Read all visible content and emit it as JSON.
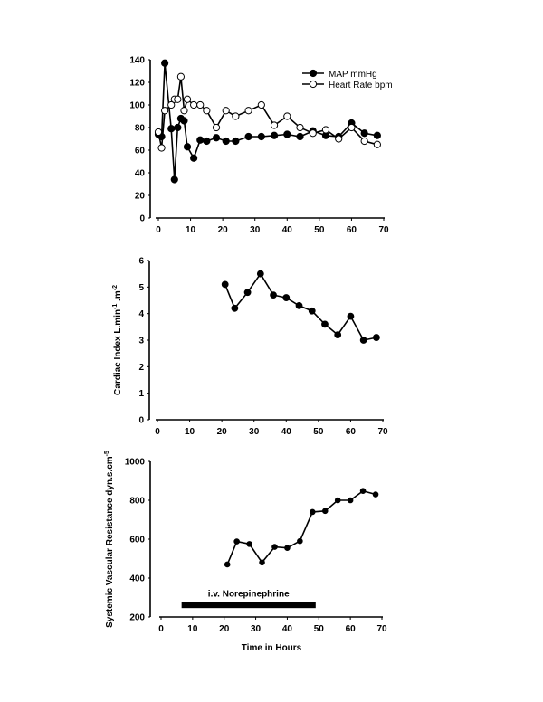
{
  "chart_data": [
    {
      "type": "line",
      "title": "",
      "xlabel": "",
      "ylabel": "",
      "xlim": [
        0,
        70
      ],
      "ylim": [
        0,
        140
      ],
      "xticks": [
        0,
        10,
        20,
        30,
        40,
        50,
        60,
        70
      ],
      "yticks": [
        0,
        20,
        40,
        60,
        80,
        100,
        120,
        140
      ],
      "grid": false,
      "legend_position": "top-right",
      "series": [
        {
          "name": "MAP mmHg",
          "marker": "filled-circle",
          "x": [
            0,
            1,
            2,
            4,
            5,
            6,
            7,
            8,
            9,
            11,
            13,
            15,
            18,
            21,
            24,
            28,
            32,
            36,
            40,
            44,
            48,
            52,
            56,
            60,
            64,
            68
          ],
          "y": [
            74,
            72,
            137,
            79,
            34,
            80,
            88,
            86,
            63,
            53,
            69,
            68,
            71,
            68,
            68,
            72,
            72,
            73,
            74,
            72,
            77,
            73,
            72,
            84,
            75,
            73
          ]
        },
        {
          "name": "Heart Rate bpm",
          "marker": "open-circle",
          "x": [
            0,
            1,
            2,
            4,
            5,
            6,
            7,
            8,
            9,
            11,
            13,
            15,
            18,
            21,
            24,
            28,
            32,
            36,
            40,
            44,
            48,
            52,
            56,
            60,
            64,
            68
          ],
          "y": [
            76,
            62,
            95,
            100,
            105,
            105,
            125,
            95,
            105,
            100,
            100,
            95,
            80,
            95,
            90,
            95,
            100,
            82,
            90,
            80,
            75,
            78,
            70,
            80,
            68,
            65
          ]
        }
      ]
    },
    {
      "type": "line",
      "title": "",
      "xlabel": "",
      "ylabel": "Cardiac Index L.min-1.m-2",
      "xlim": [
        0,
        70
      ],
      "ylim": [
        0,
        6
      ],
      "xticks": [
        0,
        10,
        20,
        30,
        40,
        50,
        60,
        70
      ],
      "yticks": [
        0,
        1,
        2,
        3,
        4,
        5,
        6
      ],
      "grid": false,
      "series": [
        {
          "name": "Cardiac Index",
          "marker": "filled-circle",
          "x": [
            21,
            24,
            28,
            32,
            36,
            40,
            44,
            48,
            52,
            56,
            60,
            64,
            68
          ],
          "y": [
            5.1,
            4.2,
            4.8,
            5.5,
            4.7,
            4.6,
            4.3,
            4.1,
            3.6,
            3.2,
            3.9,
            3.0,
            3.1
          ]
        }
      ]
    },
    {
      "type": "line",
      "title": "",
      "xlabel": "Time in Hours",
      "ylabel": "Systemic Vascular Resistance dyn.s.cm-5",
      "xlim": [
        0,
        70
      ],
      "ylim": [
        200,
        1000
      ],
      "xticks": [
        0,
        10,
        20,
        30,
        40,
        50,
        60,
        70
      ],
      "yticks": [
        200,
        400,
        600,
        800,
        1000
      ],
      "grid": false,
      "series": [
        {
          "name": "Systemic Vascular Resistance",
          "marker": "filled-circle-small",
          "x": [
            21,
            24,
            28,
            32,
            36,
            40,
            44,
            48,
            52,
            56,
            60,
            64,
            68
          ],
          "y": [
            470,
            588,
            575,
            480,
            560,
            555,
            590,
            740,
            745,
            800,
            800,
            848,
            830
          ]
        }
      ],
      "annotations": [
        {
          "type": "bar",
          "label": "i.v. Norepinephrine",
          "x_start": 6.5,
          "x_end": 49,
          "y": 262
        }
      ]
    }
  ],
  "labels": {
    "legend_map": "MAP mmHg",
    "legend_hr": "Heart Rate bpm",
    "ci_ylabel_main": "Cardiac Index L.min",
    "ci_ylabel_sup1": "-1",
    "ci_ylabel_mid": " .m",
    "ci_ylabel_sup2": "-2",
    "svr_ylabel_main": "Systemic Vascular Resistance dyn.s.cm",
    "svr_ylabel_sup": "-5",
    "svr_xlabel": "Time in Hours",
    "annotation": "i.v. Norepinephrine"
  }
}
